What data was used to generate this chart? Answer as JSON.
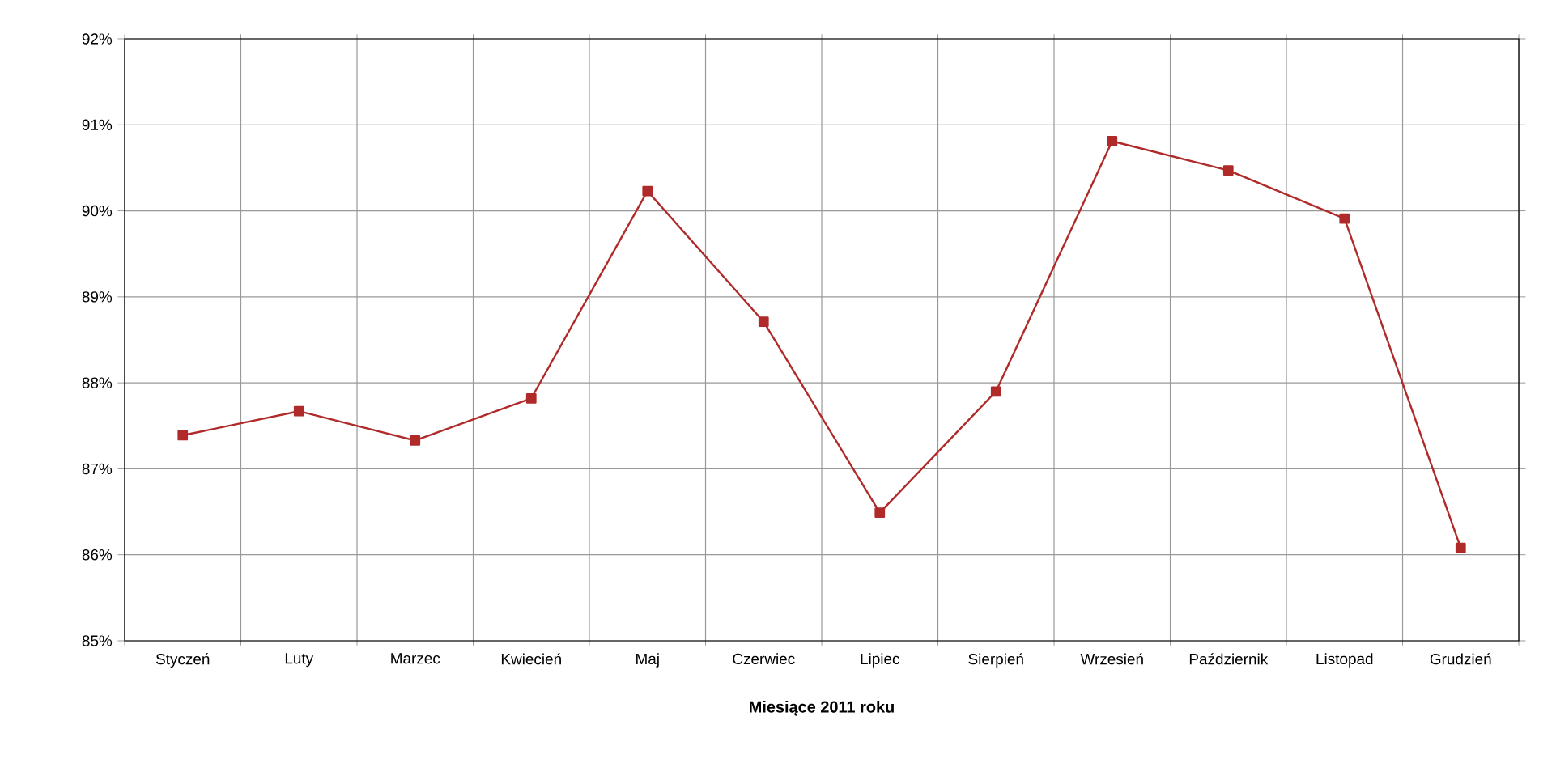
{
  "chart_data": {
    "type": "line",
    "xlabel": "Miesiące 2011  roku",
    "categories": [
      "Styczeń",
      "Luty",
      "Marzec",
      "Kwiecień",
      "Maj",
      "Czerwiec",
      "Lipiec",
      "Sierpień",
      "Wrzesień",
      "Październik",
      "Listopad",
      "Grudzień"
    ],
    "series": [
      {
        "color": "#b02a2a",
        "values": [
          87.39,
          87.67,
          87.33,
          87.82,
          90.23,
          88.71,
          86.49,
          87.9,
          90.81,
          90.47,
          89.91,
          86.08
        ]
      }
    ],
    "ylim": [
      85,
      92
    ],
    "yticks": [
      {
        "value": 85,
        "label": "85%"
      },
      {
        "value": 86,
        "label": "86%"
      },
      {
        "value": 87,
        "label": "87%"
      },
      {
        "value": 88,
        "label": "88%"
      },
      {
        "value": 89,
        "label": "89%"
      },
      {
        "value": 90,
        "label": "90%"
      },
      {
        "value": 91,
        "label": "91%"
      },
      {
        "value": 92,
        "label": "92%"
      }
    ],
    "grid": true,
    "marker": "square",
    "line_style": "solid"
  }
}
